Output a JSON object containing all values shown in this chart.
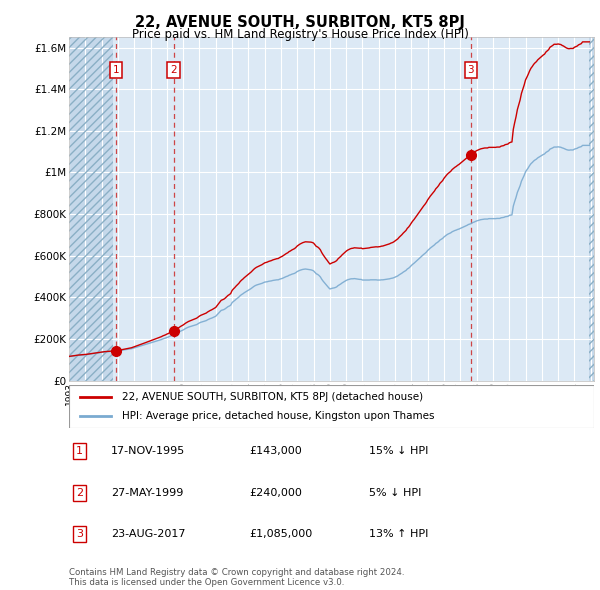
{
  "title": "22, AVENUE SOUTH, SURBITON, KT5 8PJ",
  "subtitle": "Price paid vs. HM Land Registry's House Price Index (HPI)",
  "background_color": "#ffffff",
  "plot_bg_color": "#dce9f5",
  "hatch_color": "#c8d8e8",
  "grid_color": "#ffffff",
  "ylim": [
    0,
    1650000
  ],
  "yticks": [
    0,
    200000,
    400000,
    600000,
    800000,
    1000000,
    1200000,
    1400000,
    1600000
  ],
  "ylabel_texts": [
    "£0",
    "£200K",
    "£400K",
    "£600K",
    "£800K",
    "£1M",
    "£1.2M",
    "£1.4M",
    "£1.6M"
  ],
  "hpi_dates": [
    1993.0,
    1993.083,
    1993.167,
    1993.25,
    1993.333,
    1993.417,
    1993.5,
    1993.583,
    1993.667,
    1993.75,
    1993.833,
    1993.917,
    1994.0,
    1994.083,
    1994.167,
    1994.25,
    1994.333,
    1994.417,
    1994.5,
    1994.583,
    1994.667,
    1994.75,
    1994.833,
    1994.917,
    1995.0,
    1995.083,
    1995.167,
    1995.25,
    1995.333,
    1995.417,
    1995.5,
    1995.583,
    1995.667,
    1995.75,
    1995.833,
    1995.917,
    1996.0,
    1996.083,
    1996.167,
    1996.25,
    1996.333,
    1996.417,
    1996.5,
    1996.583,
    1996.667,
    1996.75,
    1996.833,
    1996.917,
    1997.0,
    1997.083,
    1997.167,
    1997.25,
    1997.333,
    1997.417,
    1997.5,
    1997.583,
    1997.667,
    1997.75,
    1997.833,
    1997.917,
    1998.0,
    1998.083,
    1998.167,
    1998.25,
    1998.333,
    1998.417,
    1998.5,
    1998.583,
    1998.667,
    1998.75,
    1998.833,
    1998.917,
    1999.0,
    1999.083,
    1999.167,
    1999.25,
    1999.333,
    1999.417,
    1999.5,
    1999.583,
    1999.667,
    1999.75,
    1999.833,
    1999.917,
    2000.0,
    2000.083,
    2000.167,
    2000.25,
    2000.333,
    2000.417,
    2000.5,
    2000.583,
    2000.667,
    2000.75,
    2000.833,
    2000.917,
    2001.0,
    2001.083,
    2001.167,
    2001.25,
    2001.333,
    2001.417,
    2001.5,
    2001.583,
    2001.667,
    2001.75,
    2001.833,
    2001.917,
    2002.0,
    2002.083,
    2002.167,
    2002.25,
    2002.333,
    2002.417,
    2002.5,
    2002.583,
    2002.667,
    2002.75,
    2002.833,
    2002.917,
    2003.0,
    2003.083,
    2003.167,
    2003.25,
    2003.333,
    2003.417,
    2003.5,
    2003.583,
    2003.667,
    2003.75,
    2003.833,
    2003.917,
    2004.0,
    2004.083,
    2004.167,
    2004.25,
    2004.333,
    2004.417,
    2004.5,
    2004.583,
    2004.667,
    2004.75,
    2004.833,
    2004.917,
    2005.0,
    2005.083,
    2005.167,
    2005.25,
    2005.333,
    2005.417,
    2005.5,
    2005.583,
    2005.667,
    2005.75,
    2005.833,
    2005.917,
    2006.0,
    2006.083,
    2006.167,
    2006.25,
    2006.333,
    2006.417,
    2006.5,
    2006.583,
    2006.667,
    2006.75,
    2006.833,
    2006.917,
    2007.0,
    2007.083,
    2007.167,
    2007.25,
    2007.333,
    2007.417,
    2007.5,
    2007.583,
    2007.667,
    2007.75,
    2007.833,
    2007.917,
    2008.0,
    2008.083,
    2008.167,
    2008.25,
    2008.333,
    2008.417,
    2008.5,
    2008.583,
    2008.667,
    2008.75,
    2008.833,
    2008.917,
    2009.0,
    2009.083,
    2009.167,
    2009.25,
    2009.333,
    2009.417,
    2009.5,
    2009.583,
    2009.667,
    2009.75,
    2009.833,
    2009.917,
    2010.0,
    2010.083,
    2010.167,
    2010.25,
    2010.333,
    2010.417,
    2010.5,
    2010.583,
    2010.667,
    2010.75,
    2010.833,
    2010.917,
    2011.0,
    2011.083,
    2011.167,
    2011.25,
    2011.333,
    2011.417,
    2011.5,
    2011.583,
    2011.667,
    2011.75,
    2011.833,
    2011.917,
    2012.0,
    2012.083,
    2012.167,
    2012.25,
    2012.333,
    2012.417,
    2012.5,
    2012.583,
    2012.667,
    2012.75,
    2012.833,
    2012.917,
    2013.0,
    2013.083,
    2013.167,
    2013.25,
    2013.333,
    2013.417,
    2013.5,
    2013.583,
    2013.667,
    2013.75,
    2013.833,
    2013.917,
    2014.0,
    2014.083,
    2014.167,
    2014.25,
    2014.333,
    2014.417,
    2014.5,
    2014.583,
    2014.667,
    2014.75,
    2014.833,
    2014.917,
    2015.0,
    2015.083,
    2015.167,
    2015.25,
    2015.333,
    2015.417,
    2015.5,
    2015.583,
    2015.667,
    2015.75,
    2015.833,
    2015.917,
    2016.0,
    2016.083,
    2016.167,
    2016.25,
    2016.333,
    2016.417,
    2016.5,
    2016.583,
    2016.667,
    2016.75,
    2016.833,
    2016.917,
    2017.0,
    2017.083,
    2017.167,
    2017.25,
    2017.333,
    2017.417,
    2017.5,
    2017.583,
    2017.667,
    2017.75,
    2017.833,
    2017.917,
    2018.0,
    2018.083,
    2018.167,
    2018.25,
    2018.333,
    2018.417,
    2018.5,
    2018.583,
    2018.667,
    2018.75,
    2018.833,
    2018.917,
    2019.0,
    2019.083,
    2019.167,
    2019.25,
    2019.333,
    2019.417,
    2019.5,
    2019.583,
    2019.667,
    2019.75,
    2019.833,
    2019.917,
    2020.0,
    2020.083,
    2020.167,
    2020.25,
    2020.333,
    2020.417,
    2020.5,
    2020.583,
    2020.667,
    2020.75,
    2020.833,
    2020.917,
    2021.0,
    2021.083,
    2021.167,
    2021.25,
    2021.333,
    2021.417,
    2021.5,
    2021.583,
    2021.667,
    2021.75,
    2021.833,
    2021.917,
    2022.0,
    2022.083,
    2022.167,
    2022.25,
    2022.333,
    2022.417,
    2022.5,
    2022.583,
    2022.667,
    2022.75,
    2022.833,
    2022.917,
    2023.0,
    2023.083,
    2023.167,
    2023.25,
    2023.333,
    2023.417,
    2023.5,
    2023.583,
    2023.667,
    2023.75,
    2023.833,
    2023.917,
    2024.0,
    2024.083,
    2024.167,
    2024.25,
    2024.333,
    2024.417,
    2024.5,
    2024.583,
    2024.667,
    2024.75,
    2024.833,
    2024.917
  ],
  "hpi_values": [
    115000,
    116000,
    117000,
    118000,
    119000,
    120000,
    121000,
    121500,
    122000,
    122500,
    123000,
    123500,
    124000,
    125000,
    126000,
    127000,
    128000,
    129000,
    130000,
    131000,
    132000,
    133000,
    134000,
    135000,
    136000,
    137000,
    137500,
    138000,
    138500,
    139000,
    139500,
    140000,
    140500,
    141000,
    141500,
    142000,
    143000,
    144000,
    145000,
    146000,
    147000,
    148000,
    149000,
    150000,
    151000,
    152000,
    153000,
    155000,
    157000,
    159000,
    161000,
    163000,
    165000,
    167000,
    169000,
    171000,
    173000,
    175000,
    177000,
    179000,
    181000,
    183000,
    185000,
    187000,
    189000,
    191000,
    193000,
    195000,
    197000,
    200000,
    202000,
    204000,
    207000,
    209000,
    212000,
    215000,
    218000,
    221000,
    224000,
    227000,
    230000,
    233000,
    237000,
    240000,
    243000,
    247000,
    251000,
    254000,
    257000,
    259000,
    261000,
    263000,
    265000,
    267000,
    269000,
    273000,
    277000,
    280000,
    282000,
    284000,
    286000,
    288000,
    292000,
    295000,
    298000,
    300000,
    303000,
    306000,
    309000,
    316000,
    323000,
    330000,
    337000,
    339000,
    341000,
    345000,
    350000,
    355000,
    358000,
    362000,
    374000,
    380000,
    385000,
    391000,
    396000,
    401000,
    408000,
    413000,
    417000,
    422000,
    426000,
    430000,
    434000,
    438000,
    442000,
    447000,
    452000,
    456000,
    459000,
    461000,
    463000,
    465000,
    467000,
    470000,
    473000,
    474000,
    475000,
    477000,
    478000,
    479000,
    481000,
    482000,
    483000,
    484000,
    484000,
    487000,
    489000,
    491000,
    494000,
    497000,
    500000,
    502000,
    506000,
    508000,
    511000,
    513000,
    515000,
    519000,
    524000,
    527000,
    530000,
    532000,
    534000,
    535000,
    536000,
    535000,
    534000,
    533000,
    532000,
    530000,
    527000,
    520000,
    513000,
    510000,
    505000,
    498000,
    487000,
    478000,
    470000,
    462000,
    455000,
    447000,
    440000,
    442000,
    444000,
    445000,
    447000,
    450000,
    456000,
    460000,
    464000,
    469000,
    473000,
    477000,
    481000,
    484000,
    486000,
    488000,
    489000,
    489000,
    490000,
    489000,
    488000,
    487000,
    486000,
    486000,
    483000,
    483000,
    483000,
    483000,
    483000,
    483000,
    484000,
    484000,
    484000,
    484000,
    484000,
    483000,
    483000,
    483000,
    484000,
    484000,
    485000,
    486000,
    487000,
    488000,
    489000,
    491000,
    492000,
    494000,
    497000,
    500000,
    503000,
    508000,
    512000,
    516000,
    521000,
    525000,
    529000,
    536000,
    540000,
    546000,
    553000,
    559000,
    564000,
    570000,
    576000,
    582000,
    588000,
    594000,
    600000,
    606000,
    611000,
    617000,
    625000,
    631000,
    637000,
    642000,
    647000,
    652000,
    659000,
    663000,
    668000,
    675000,
    679000,
    683000,
    690000,
    695000,
    700000,
    704000,
    707000,
    710000,
    715000,
    718000,
    721000,
    723000,
    726000,
    728000,
    731000,
    734000,
    737000,
    740000,
    743000,
    746000,
    750000,
    752000,
    754000,
    759000,
    761000,
    764000,
    767000,
    769000,
    771000,
    773000,
    774000,
    775000,
    776000,
    776000,
    776000,
    778000,
    778000,
    778000,
    778000,
    778000,
    778000,
    779000,
    779000,
    779000,
    782000,
    783000,
    784000,
    787000,
    788000,
    789000,
    793000,
    795000,
    796000,
    838000,
    860000,
    880000,
    904000,
    920000,
    936000,
    958000,
    972000,
    986000,
    1003000,
    1012000,
    1022000,
    1033000,
    1042000,
    1048000,
    1055000,
    1060000,
    1064000,
    1070000,
    1074000,
    1078000,
    1082000,
    1086000,
    1089000,
    1096000,
    1100000,
    1104000,
    1112000,
    1115000,
    1118000,
    1122000,
    1122000,
    1122000,
    1123000,
    1122000,
    1121000,
    1118000,
    1116000,
    1113000,
    1110000,
    1108000,
    1107000,
    1108000,
    1108000,
    1108000,
    1112000,
    1114000,
    1116000,
    1120000,
    1122000,
    1124000,
    1130000,
    1130000,
    1130000,
    1130000,
    1130000,
    1130000
  ],
  "sale_dates": [
    1995.88,
    1999.41,
    2017.64
  ],
  "sale_prices": [
    143000,
    240000,
    1085000
  ],
  "sale_labels": [
    "1",
    "2",
    "3"
  ],
  "sale_line_color": "#cc0000",
  "sale_dot_color": "#cc0000",
  "hpi_line_color": "#7aaad0",
  "legend_box_color": "#ffffff",
  "legend_border_color": "#999999",
  "transaction_label_color": "#cc0000",
  "transaction_border_color": "#cc0000",
  "footer_text": "Contains HM Land Registry data © Crown copyright and database right 2024.\nThis data is licensed under the Open Government Licence v3.0.",
  "legend_label1": "22, AVENUE SOUTH, SURBITON, KT5 8PJ (detached house)",
  "legend_label2": "HPI: Average price, detached house, Kingston upon Thames",
  "table_rows": [
    [
      "1",
      "17-NOV-1995",
      "£143,000",
      "15% ↓ HPI"
    ],
    [
      "2",
      "27-MAY-1999",
      "£240,000",
      "5% ↓ HPI"
    ],
    [
      "3",
      "23-AUG-2017",
      "£1,085,000",
      "13% ↑ HPI"
    ]
  ]
}
